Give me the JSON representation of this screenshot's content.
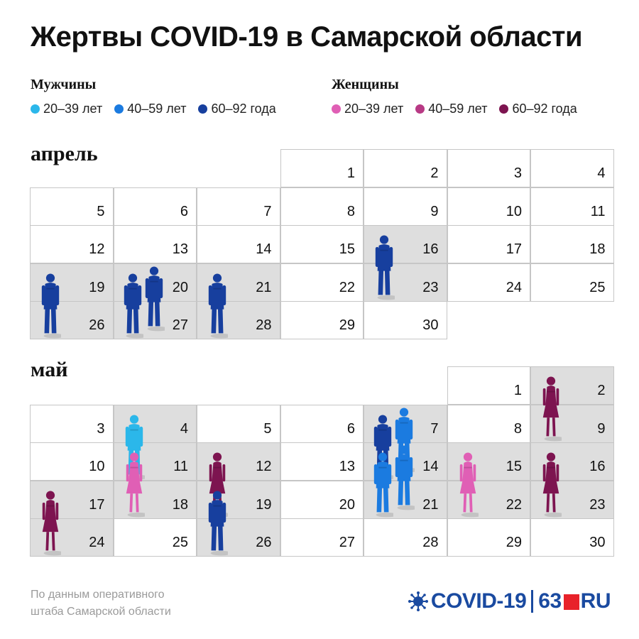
{
  "title": "Жертвы COVID-19 в Самарской области",
  "legend": {
    "men": {
      "title": "Мужчины",
      "items": [
        {
          "label": "20–39 лет",
          "color": "#2bb7ea"
        },
        {
          "label": "40–59 лет",
          "color": "#1b7be0"
        },
        {
          "label": "60–92 года",
          "color": "#173f9e"
        }
      ]
    },
    "women": {
      "title": "Женщины",
      "items": [
        {
          "label": "20–39 лет",
          "color": "#e05fb5"
        },
        {
          "label": "40–59 лет",
          "color": "#b83a85"
        },
        {
          "label": "60–92 года",
          "color": "#7d1450"
        }
      ]
    }
  },
  "chart_data": [
    {
      "type": "calendar",
      "month": "апрель",
      "first_weekday": 3,
      "days_in_month": 30,
      "deaths": [
        {
          "day": 16,
          "figures": [
            "m60"
          ]
        },
        {
          "day": 19,
          "figures": [
            "m60"
          ]
        },
        {
          "day": 20,
          "figures": [
            "m60",
            "m60"
          ]
        },
        {
          "day": 21,
          "figures": [
            "m60"
          ]
        }
      ]
    },
    {
      "type": "calendar",
      "month": "май",
      "first_weekday": 5,
      "days_in_month": 30,
      "deaths": [
        {
          "day": 2,
          "figures": [
            "w60"
          ]
        },
        {
          "day": 4,
          "figures": [
            "m20"
          ]
        },
        {
          "day": 7,
          "figures": [
            "m60",
            "m40"
          ]
        },
        {
          "day": 11,
          "figures": [
            "w20"
          ]
        },
        {
          "day": 12,
          "figures": [
            "w60"
          ]
        },
        {
          "day": 14,
          "figures": [
            "m40",
            "m40"
          ]
        },
        {
          "day": 15,
          "figures": [
            "w20"
          ]
        },
        {
          "day": 16,
          "figures": [
            "w60"
          ]
        },
        {
          "day": 17,
          "figures": [
            "w60"
          ]
        },
        {
          "day": 19,
          "figures": [
            "m60"
          ]
        }
      ]
    }
  ],
  "footer": {
    "line1": "По данным оперативного",
    "line2": "штаба Самарской области"
  },
  "logo": {
    "covid": "COVID-19",
    "num": "63",
    "suffix": "RU"
  }
}
